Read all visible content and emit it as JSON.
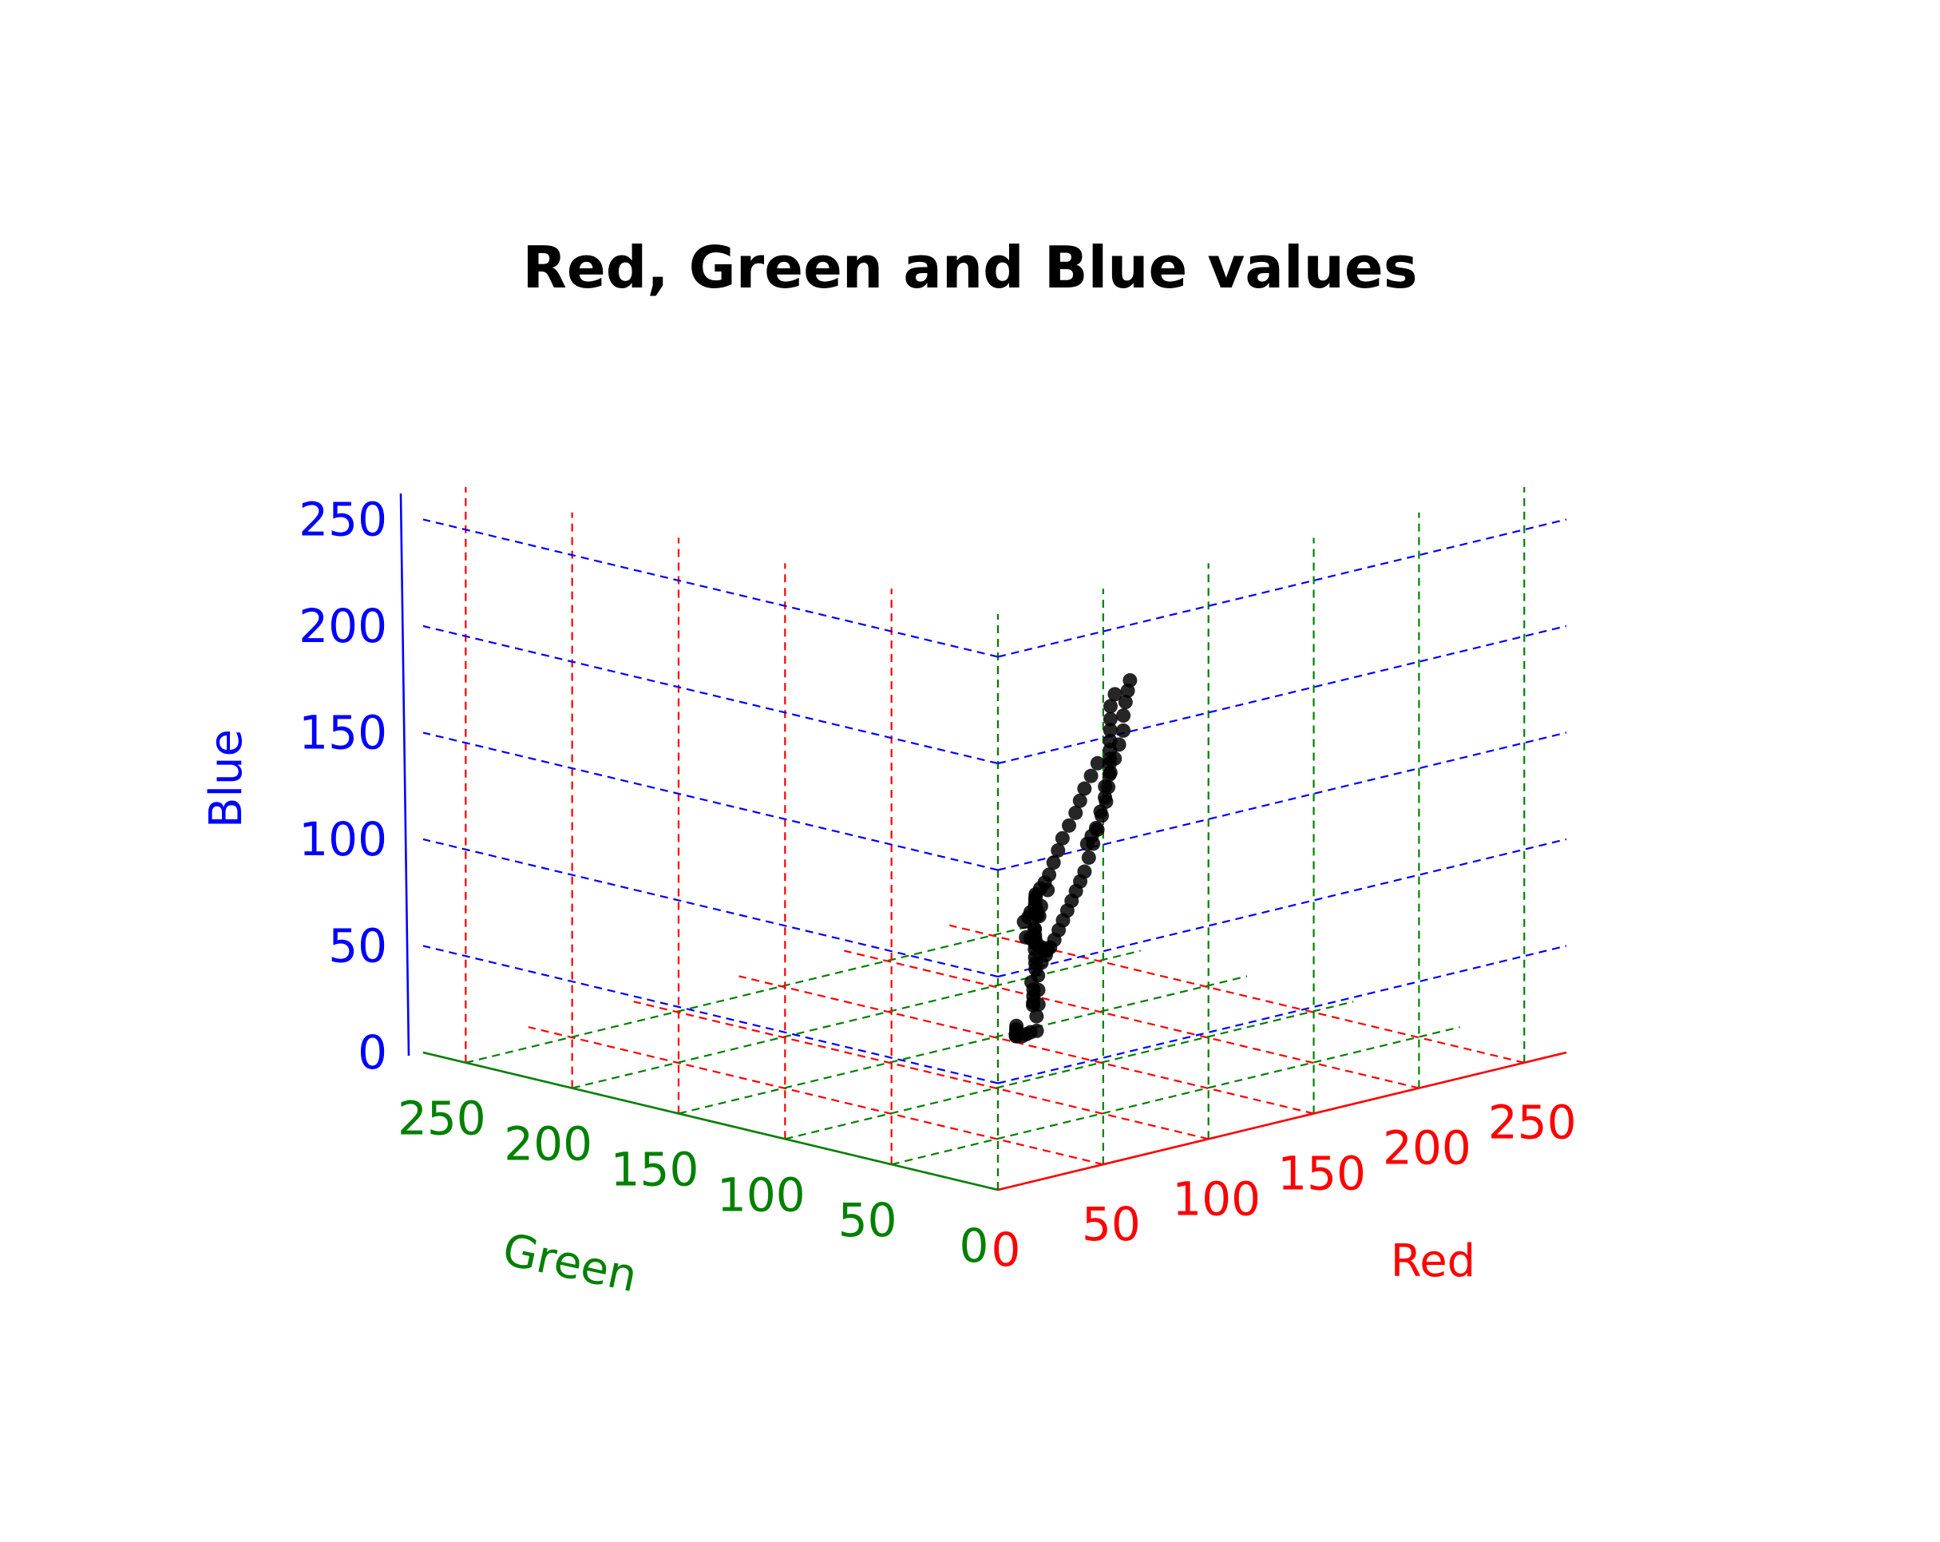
{
  "chart_data": {
    "type": "scatter",
    "projection": "3d",
    "title": "Red, Green and Blue values",
    "axes": {
      "x": {
        "label": "Red",
        "range": [
          0,
          270
        ],
        "ticks": [
          0,
          50,
          100,
          150,
          200,
          250
        ],
        "color": "#ff0000"
      },
      "y": {
        "label": "Green",
        "range": [
          0,
          270
        ],
        "ticks": [
          0,
          50,
          100,
          150,
          200,
          250
        ],
        "color": "#008000"
      },
      "z": {
        "label": "Blue",
        "range": [
          0,
          270
        ],
        "ticks": [
          0,
          50,
          100,
          150,
          200,
          250
        ],
        "color": "#0000ff"
      }
    },
    "grid": true,
    "grid_style": "dashed",
    "marker_color": "#000000",
    "series": [
      {
        "points": [
          [
            88,
            25,
            212
          ],
          [
            92,
            30,
            205
          ],
          [
            95,
            34,
            198
          ],
          [
            98,
            38,
            190
          ],
          [
            100,
            40,
            182
          ],
          [
            102,
            44,
            174
          ],
          [
            104,
            48,
            166
          ],
          [
            106,
            52,
            158
          ],
          [
            108,
            55,
            150
          ],
          [
            110,
            58,
            142
          ],
          [
            112,
            62,
            134
          ],
          [
            114,
            66,
            126
          ],
          [
            116,
            70,
            118
          ],
          [
            118,
            74,
            110
          ],
          [
            120,
            78,
            102
          ],
          [
            122,
            82,
            96
          ],
          [
            124,
            86,
            90
          ],
          [
            126,
            90,
            84
          ],
          [
            128,
            94,
            78
          ],
          [
            130,
            98,
            72
          ],
          [
            132,
            102,
            66
          ],
          [
            134,
            106,
            60
          ],
          [
            136,
            110,
            55
          ],
          [
            138,
            114,
            50
          ],
          [
            140,
            118,
            45
          ],
          [
            108,
            60,
            160
          ],
          [
            115,
            70,
            150
          ],
          [
            122,
            80,
            140
          ],
          [
            130,
            90,
            130
          ],
          [
            138,
            100,
            120
          ],
          [
            145,
            110,
            110
          ],
          [
            152,
            120,
            100
          ],
          [
            160,
            130,
            90
          ],
          [
            168,
            140,
            80
          ],
          [
            176,
            150,
            70
          ],
          [
            184,
            160,
            62
          ],
          [
            192,
            170,
            55
          ],
          [
            200,
            180,
            48
          ],
          [
            210,
            190,
            42
          ],
          [
            220,
            200,
            36
          ],
          [
            228,
            208,
            30
          ],
          [
            235,
            215,
            25
          ],
          [
            240,
            222,
            20
          ],
          [
            245,
            228,
            15
          ],
          [
            250,
            235,
            10
          ],
          [
            150,
            125,
            75
          ],
          [
            160,
            138,
            62
          ],
          [
            170,
            150,
            55
          ],
          [
            180,
            160,
            50
          ],
          [
            190,
            170,
            45
          ],
          [
            200,
            180,
            40
          ],
          [
            210,
            190,
            35
          ],
          [
            218,
            198,
            30
          ],
          [
            226,
            205,
            26
          ],
          [
            234,
            212,
            22
          ],
          [
            165,
            140,
            40
          ],
          [
            175,
            150,
            35
          ],
          [
            185,
            160,
            30
          ],
          [
            195,
            172,
            26
          ],
          [
            205,
            184,
            22
          ],
          [
            215,
            195,
            18
          ],
          [
            225,
            205,
            15
          ],
          [
            235,
            215,
            12
          ],
          [
            245,
            225,
            10
          ],
          [
            250,
            230,
            8
          ],
          [
            120,
            110,
            22
          ],
          [
            125,
            115,
            18
          ],
          [
            130,
            120,
            14
          ],
          [
            135,
            125,
            10
          ],
          [
            140,
            130,
            8
          ],
          [
            145,
            132,
            6
          ],
          [
            150,
            135,
            5
          ],
          [
            155,
            138,
            4
          ],
          [
            160,
            140,
            3
          ],
          [
            168,
            148,
            6
          ],
          [
            176,
            155,
            8
          ],
          [
            186,
            165,
            10
          ],
          [
            196,
            175,
            12
          ],
          [
            206,
            186,
            10
          ],
          [
            216,
            196,
            8
          ],
          [
            226,
            206,
            6
          ],
          [
            236,
            216,
            5
          ],
          [
            244,
            224,
            4
          ],
          [
            250,
            232,
            3
          ],
          [
            252,
            236,
            2
          ],
          [
            112,
            95,
            48
          ],
          [
            118,
            100,
            42
          ],
          [
            124,
            106,
            36
          ],
          [
            130,
            112,
            30
          ],
          [
            136,
            118,
            26
          ],
          [
            96,
            40,
            200
          ],
          [
            100,
            46,
            192
          ],
          [
            104,
            50,
            184
          ],
          [
            110,
            56,
            176
          ],
          [
            116,
            62,
            168
          ],
          [
            124,
            70,
            160
          ],
          [
            132,
            78,
            152
          ],
          [
            140,
            86,
            146
          ],
          [
            146,
            92,
            138
          ],
          [
            150,
            98,
            130
          ],
          [
            156,
            104,
            122
          ],
          [
            162,
            112,
            112
          ],
          [
            170,
            122,
            100
          ],
          [
            178,
            132,
            92
          ],
          [
            186,
            142,
            84
          ]
        ]
      }
    ]
  }
}
